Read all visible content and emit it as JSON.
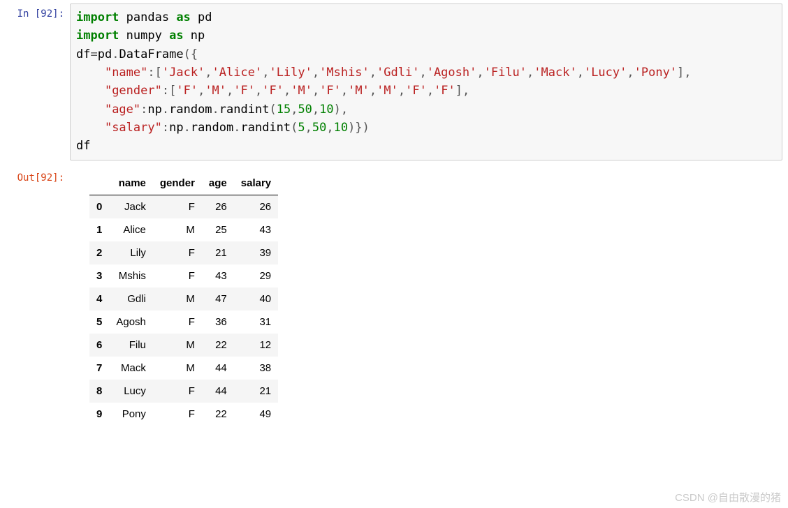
{
  "input": {
    "prompt": "In  [92]:",
    "code_tokens": [
      [
        [
          "kw",
          "import"
        ],
        [
          "txt",
          " pandas "
        ],
        [
          "kw",
          "as"
        ],
        [
          "txt",
          " pd"
        ]
      ],
      [
        [
          "kw",
          "import"
        ],
        [
          "txt",
          " numpy "
        ],
        [
          "kw",
          "as"
        ],
        [
          "txt",
          " np"
        ]
      ],
      [
        [
          "txt",
          "df"
        ],
        [
          "op",
          "="
        ],
        [
          "txt",
          "pd"
        ],
        [
          "op",
          "."
        ],
        [
          "txt",
          "DataFrame"
        ],
        [
          "op",
          "("
        ],
        [
          "op",
          "{"
        ]
      ],
      [
        [
          "txt",
          "    "
        ],
        [
          "str",
          "\"name\""
        ],
        [
          "op",
          ":"
        ],
        [
          "op",
          "["
        ],
        [
          "str",
          "'Jack'"
        ],
        [
          "op",
          ","
        ],
        [
          "str",
          "'Alice'"
        ],
        [
          "op",
          ","
        ],
        [
          "str",
          "'Lily'"
        ],
        [
          "op",
          ","
        ],
        [
          "str",
          "'Mshis'"
        ],
        [
          "op",
          ","
        ],
        [
          "str",
          "'Gdli'"
        ],
        [
          "op",
          ","
        ],
        [
          "str",
          "'Agosh'"
        ],
        [
          "op",
          ","
        ],
        [
          "str",
          "'Filu'"
        ],
        [
          "op",
          ","
        ],
        [
          "str",
          "'Mack'"
        ],
        [
          "op",
          ","
        ],
        [
          "str",
          "'Lucy'"
        ],
        [
          "op",
          ","
        ],
        [
          "str",
          "'Pony'"
        ],
        [
          "op",
          "]"
        ],
        [
          "op",
          ","
        ]
      ],
      [
        [
          "txt",
          "    "
        ],
        [
          "str",
          "\"gender\""
        ],
        [
          "op",
          ":"
        ],
        [
          "op",
          "["
        ],
        [
          "str",
          "'F'"
        ],
        [
          "op",
          ","
        ],
        [
          "str",
          "'M'"
        ],
        [
          "op",
          ","
        ],
        [
          "str",
          "'F'"
        ],
        [
          "op",
          ","
        ],
        [
          "str",
          "'F'"
        ],
        [
          "op",
          ","
        ],
        [
          "str",
          "'M'"
        ],
        [
          "op",
          ","
        ],
        [
          "str",
          "'F'"
        ],
        [
          "op",
          ","
        ],
        [
          "str",
          "'M'"
        ],
        [
          "op",
          ","
        ],
        [
          "str",
          "'M'"
        ],
        [
          "op",
          ","
        ],
        [
          "str",
          "'F'"
        ],
        [
          "op",
          ","
        ],
        [
          "str",
          "'F'"
        ],
        [
          "op",
          "]"
        ],
        [
          "op",
          ","
        ]
      ],
      [
        [
          "txt",
          "    "
        ],
        [
          "str",
          "\"age\""
        ],
        [
          "op",
          ":"
        ],
        [
          "txt",
          "np"
        ],
        [
          "op",
          "."
        ],
        [
          "txt",
          "random"
        ],
        [
          "op",
          "."
        ],
        [
          "txt",
          "randint"
        ],
        [
          "op",
          "("
        ],
        [
          "num",
          "15"
        ],
        [
          "op",
          ","
        ],
        [
          "num",
          "50"
        ],
        [
          "op",
          ","
        ],
        [
          "num",
          "10"
        ],
        [
          "op",
          ")"
        ],
        [
          "op",
          ","
        ]
      ],
      [
        [
          "txt",
          "    "
        ],
        [
          "str",
          "\"salary\""
        ],
        [
          "op",
          ":"
        ],
        [
          "txt",
          "np"
        ],
        [
          "op",
          "."
        ],
        [
          "txt",
          "random"
        ],
        [
          "op",
          "."
        ],
        [
          "txt",
          "randint"
        ],
        [
          "op",
          "("
        ],
        [
          "num",
          "5"
        ],
        [
          "op",
          ","
        ],
        [
          "num",
          "50"
        ],
        [
          "op",
          ","
        ],
        [
          "num",
          "10"
        ],
        [
          "op",
          ")"
        ],
        [
          "op",
          "}"
        ],
        [
          "op",
          ")"
        ]
      ],
      [
        [
          "txt",
          "df"
        ]
      ]
    ],
    "colors": {
      "kw": "#008000",
      "str": "#ba2121",
      "num": "#008000",
      "op": "#303030",
      "txt": "#000000"
    },
    "background": "#f7f7f7",
    "border": "#cfcfcf"
  },
  "output": {
    "prompt": "Out[92]:",
    "table": {
      "columns": [
        "name",
        "gender",
        "age",
        "salary"
      ],
      "index": [
        "0",
        "1",
        "2",
        "3",
        "4",
        "5",
        "6",
        "7",
        "8",
        "9"
      ],
      "rows": [
        [
          "Jack",
          "F",
          "26",
          "26"
        ],
        [
          "Alice",
          "M",
          "25",
          "43"
        ],
        [
          "Lily",
          "F",
          "21",
          "39"
        ],
        [
          "Mshis",
          "F",
          "43",
          "29"
        ],
        [
          "Gdli",
          "M",
          "47",
          "40"
        ],
        [
          "Agosh",
          "F",
          "36",
          "31"
        ],
        [
          "Filu",
          "M",
          "22",
          "12"
        ],
        [
          "Mack",
          "M",
          "44",
          "38"
        ],
        [
          "Lucy",
          "F",
          "44",
          "21"
        ],
        [
          "Pony",
          "F",
          "22",
          "49"
        ]
      ],
      "row_stripe_odd": "#f5f5f5",
      "row_stripe_even": "#ffffff",
      "header_border": "#000000",
      "font_size": 15
    }
  },
  "watermark": "CSDN @自由散漫的猪"
}
